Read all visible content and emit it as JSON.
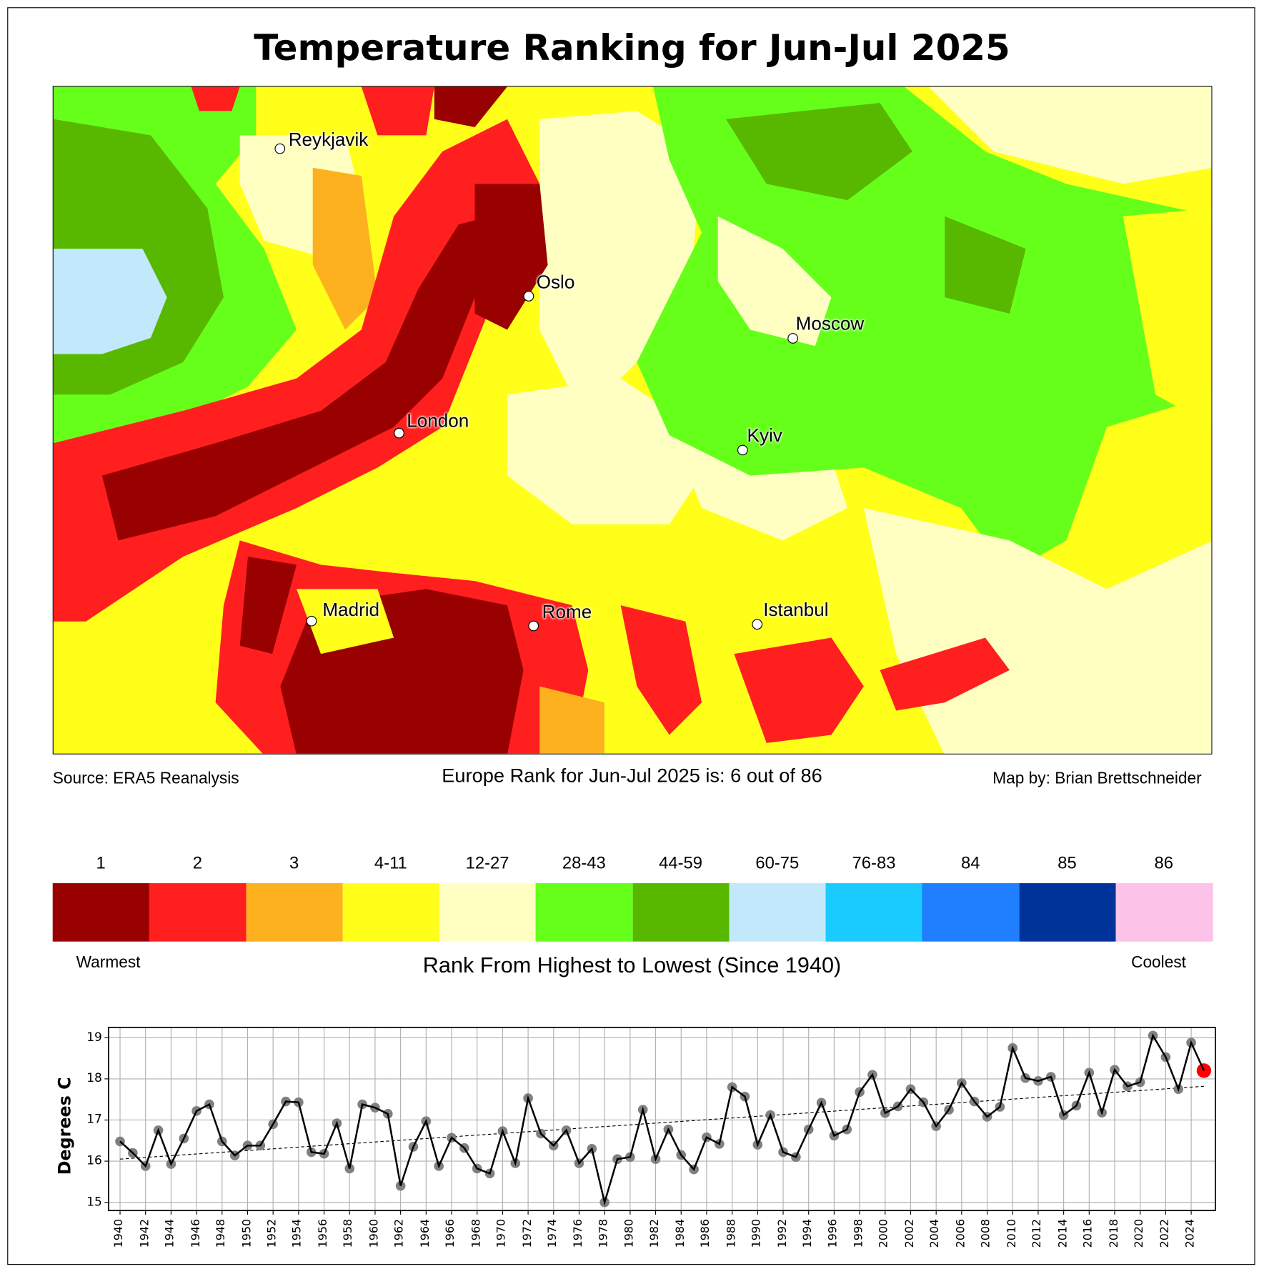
{
  "title": "Temperature Ranking for Jun-Jul 2025",
  "map": {
    "cities": [
      {
        "name": "Reykjavik"
      },
      {
        "name": "Oslo"
      },
      {
        "name": "Moscow"
      },
      {
        "name": "London"
      },
      {
        "name": "Kyiv"
      },
      {
        "name": "Madrid"
      },
      {
        "name": "Rome"
      },
      {
        "name": "Istanbul"
      }
    ]
  },
  "captions": {
    "source": "Source: ERA5 Reanalysis",
    "rank": "Europe Rank for Jun-Jul 2025 is: 6 out of 86",
    "credit": "Map by: Brian Brettschneider"
  },
  "colorbar": {
    "title": "Rank From Highest to Lowest (Since 1940)",
    "warm_label": "Warmest",
    "cool_label": "Coolest",
    "bins": [
      {
        "label": "1",
        "color": "#990000"
      },
      {
        "label": "2",
        "color": "#ff1f1f"
      },
      {
        "label": "3",
        "color": "#fdb11e"
      },
      {
        "label": "4-11",
        "color": "#ffff1a"
      },
      {
        "label": "12-27",
        "color": "#ffffc2"
      },
      {
        "label": "28-43",
        "color": "#66ff1a"
      },
      {
        "label": "44-59",
        "color": "#58b800"
      },
      {
        "label": "60-75",
        "color": "#c2e8fc"
      },
      {
        "label": "76-83",
        "color": "#1acbff"
      },
      {
        "label": "84",
        "color": "#1f7fff"
      },
      {
        "label": "85",
        "color": "#00339a"
      },
      {
        "label": "86",
        "color": "#fdc2e8"
      }
    ]
  },
  "chart_data": {
    "type": "line",
    "title": "",
    "xlabel": "",
    "ylabel": "Degrees C",
    "ylim": [
      14.8,
      19.25
    ],
    "xlim": [
      1939.1,
      2025.9
    ],
    "yticks": [
      "15",
      "16",
      "17",
      "18",
      "19"
    ],
    "grid": true,
    "x": [
      1940,
      1941,
      1942,
      1943,
      1944,
      1945,
      1946,
      1947,
      1948,
      1949,
      1950,
      1951,
      1952,
      1953,
      1954,
      1955,
      1956,
      1957,
      1958,
      1959,
      1960,
      1961,
      1962,
      1963,
      1964,
      1965,
      1966,
      1967,
      1968,
      1969,
      1970,
      1971,
      1972,
      1973,
      1974,
      1975,
      1976,
      1977,
      1978,
      1979,
      1980,
      1981,
      1982,
      1983,
      1984,
      1985,
      1986,
      1987,
      1988,
      1989,
      1990,
      1991,
      1992,
      1993,
      1994,
      1995,
      1996,
      1997,
      1998,
      1999,
      2000,
      2001,
      2002,
      2003,
      2004,
      2005,
      2006,
      2007,
      2008,
      2009,
      2010,
      2011,
      2012,
      2013,
      2014,
      2015,
      2016,
      2017,
      2018,
      2019,
      2020,
      2021,
      2022,
      2023,
      2024,
      2025
    ],
    "values": [
      16.48,
      16.2,
      15.88,
      16.75,
      15.93,
      16.55,
      17.22,
      17.38,
      16.48,
      16.14,
      16.38,
      16.38,
      16.9,
      17.45,
      17.43,
      16.22,
      16.18,
      16.92,
      15.82,
      17.38,
      17.3,
      17.15,
      15.4,
      16.35,
      16.97,
      15.88,
      16.57,
      16.32,
      15.82,
      15.7,
      16.73,
      15.95,
      17.53,
      16.67,
      16.38,
      16.75,
      15.95,
      16.3,
      15.0,
      16.05,
      16.1,
      17.25,
      16.05,
      16.77,
      16.15,
      15.8,
      16.58,
      16.42,
      17.8,
      17.57,
      16.4,
      17.12,
      16.22,
      16.1,
      16.77,
      17.42,
      16.62,
      16.77,
      17.68,
      18.1,
      17.17,
      17.33,
      17.75,
      17.43,
      16.85,
      17.25,
      17.9,
      17.45,
      17.08,
      17.32,
      18.75,
      18.02,
      17.95,
      18.05,
      17.12,
      17.35,
      18.15,
      17.18,
      18.22,
      17.82,
      17.92,
      19.05,
      18.53,
      17.75,
      18.88,
      18.2
    ],
    "highlight": {
      "x": 2025,
      "value": 18.2,
      "color": "#ff0000"
    },
    "trend": {
      "start": [
        1940,
        16.05
      ],
      "end": [
        2025,
        17.82
      ]
    },
    "series_color": "#000000",
    "marker_color": "#808080"
  }
}
